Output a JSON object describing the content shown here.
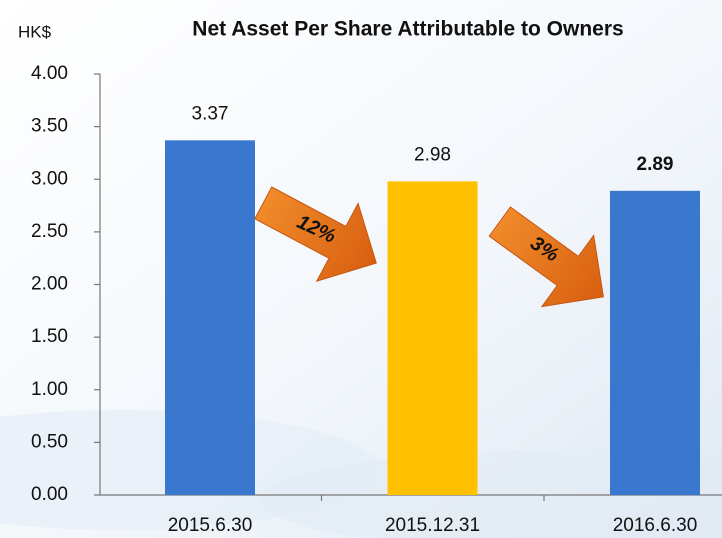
{
  "chart_data": {
    "type": "bar",
    "title": "Net Asset Per Share Attributable to Owners",
    "y_label": "HK$",
    "categories": [
      "2015.6.30",
      "2015.12.31",
      "2016.6.30"
    ],
    "values": [
      3.37,
      2.98,
      2.89
    ],
    "colors": [
      "#3a78cf",
      "#ffc000",
      "#3a78cf"
    ],
    "ylim": [
      0,
      4
    ],
    "yticks": [
      {
        "value": 0,
        "label": "0.00"
      },
      {
        "value": 0.5,
        "label": "0.50"
      },
      {
        "value": 1,
        "label": "1.00"
      },
      {
        "value": 1.5,
        "label": "1.50"
      },
      {
        "value": 2,
        "label": "2.00"
      },
      {
        "value": 2.5,
        "label": "2.50"
      },
      {
        "value": 3,
        "label": "3.00"
      },
      {
        "value": 3.5,
        "label": "3.50"
      },
      {
        "value": 4,
        "label": "4.00"
      }
    ],
    "annotations": [
      "12%",
      "3%"
    ]
  }
}
